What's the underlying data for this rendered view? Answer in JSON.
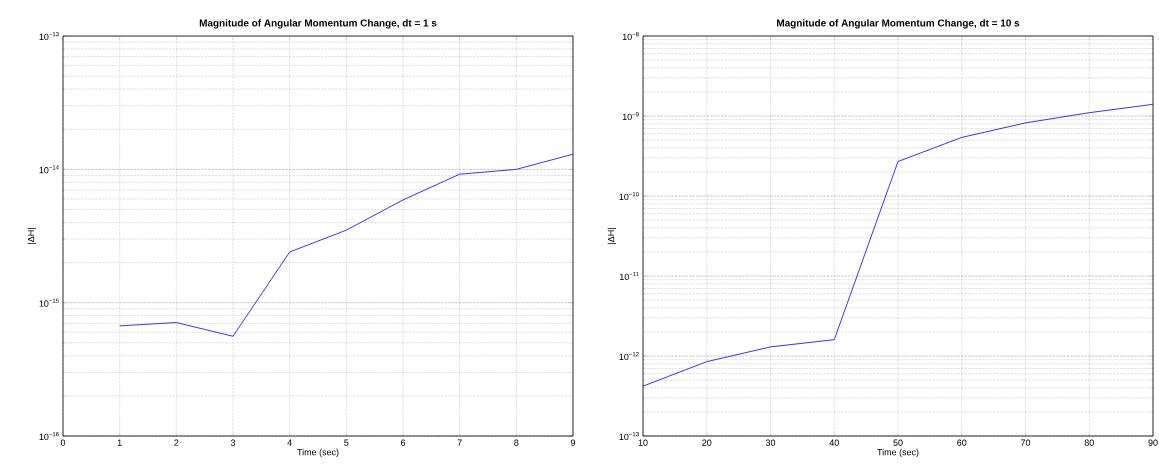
{
  "chart_data": [
    {
      "type": "line",
      "title": "Magnitude of Angular Momentum Change, dt = 1 s",
      "xlabel": "Time (sec)",
      "ylabel": "|ΔH|",
      "log": "y",
      "grid": true,
      "line_style": "solid",
      "x": [
        1,
        2,
        3,
        4,
        5,
        6,
        7,
        8,
        9
      ],
      "series": [
        {
          "color": "#0000ff",
          "values": [
            6.7e-16,
            7.1e-16,
            5.6e-16,
            2.4e-15,
            3.5e-15,
            5.9e-15,
            9.2e-15,
            1e-14,
            1.3e-14
          ]
        }
      ],
      "xlim": [
        0,
        9
      ],
      "xticks": [
        0,
        1,
        2,
        3,
        4,
        5,
        6,
        7,
        8,
        9
      ],
      "ylim": [
        1e-16,
        1e-13
      ],
      "yticks": [
        {
          "value": 1e-16,
          "label": "10$^{−16}$"
        },
        {
          "value": 1e-15,
          "label": "10$^{−15}$"
        },
        {
          "value": 1e-14,
          "label": "10$^{−14}$"
        },
        {
          "value": 1e-13,
          "label": "10$^{−13}$"
        }
      ]
    },
    {
      "type": "line",
      "title": "Magnitude of Angular Momentum Change, dt = 10 s",
      "xlabel": "Time (sec)",
      "ylabel": "|ΔH|",
      "log": "y",
      "grid": true,
      "line_style": "solid",
      "x": [
        10,
        20,
        30,
        40,
        50,
        60,
        70,
        80,
        90
      ],
      "series": [
        {
          "color": "#0000ff",
          "values": [
            4.2e-13,
            8.5e-13,
            1.3e-12,
            1.6e-12,
            2.7e-10,
            5.4e-10,
            8.2e-10,
            1.1e-09,
            1.4e-09
          ]
        }
      ],
      "xlim": [
        10,
        90
      ],
      "xticks": [
        10,
        20,
        30,
        40,
        50,
        60,
        70,
        80,
        90
      ],
      "ylim": [
        1e-13,
        1e-08
      ],
      "yticks": [
        {
          "value": 1e-13,
          "label": "10$^{−13}$"
        },
        {
          "value": 1e-12,
          "label": "10$^{−12}$"
        },
        {
          "value": 1e-11,
          "label": "10$^{−11}$"
        },
        {
          "value": 1e-10,
          "label": "10$^{−10}$"
        },
        {
          "value": 1e-09,
          "label": "10$^{−9}$"
        },
        {
          "value": 1e-08,
          "label": "10$^{−8}$"
        }
      ]
    }
  ]
}
